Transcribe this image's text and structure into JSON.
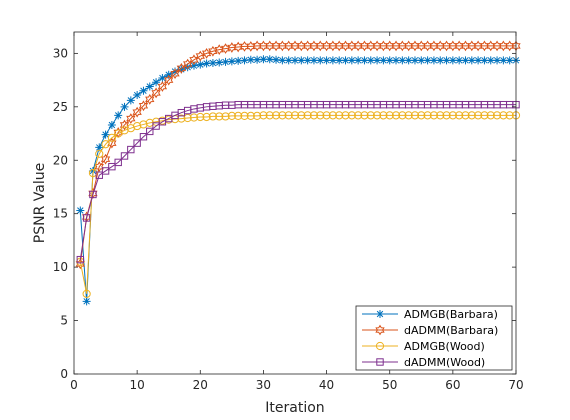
{
  "chart_data": {
    "type": "line",
    "xlabel": "Iteration",
    "ylabel": "PSNR Value",
    "xlim": [
      0,
      70
    ],
    "ylim": [
      0,
      32
    ],
    "xticks": [
      0,
      10,
      20,
      30,
      40,
      50,
      60,
      70
    ],
    "yticks": [
      0,
      5,
      10,
      15,
      20,
      25,
      30
    ],
    "grid": false,
    "legend_position": "bottom-right",
    "series": [
      {
        "name": "ADMGB(Barbara)",
        "color": "#0072BD",
        "marker": "asterisk",
        "values": [
          15.3,
          6.8,
          19.0,
          21.2,
          22.4,
          23.3,
          24.2,
          25.0,
          25.6,
          26.1,
          26.5,
          26.9,
          27.3,
          27.7,
          28.0,
          28.3,
          28.5,
          28.7,
          28.85,
          28.95,
          29.05,
          29.1,
          29.15,
          29.2,
          29.25,
          29.3,
          29.35,
          29.4,
          29.4,
          29.45,
          29.45,
          29.4,
          29.35,
          29.35,
          29.35,
          29.35,
          29.35,
          29.35,
          29.35,
          29.35,
          29.35,
          29.35,
          29.35,
          29.35,
          29.35,
          29.35,
          29.35,
          29.35,
          29.35,
          29.35,
          29.35,
          29.35,
          29.35,
          29.35,
          29.35,
          29.35,
          29.35,
          29.35,
          29.35,
          29.35,
          29.35,
          29.35,
          29.35,
          29.35,
          29.35,
          29.35,
          29.35,
          29.35,
          29.35,
          29.35
        ]
      },
      {
        "name": "dADMM(Barbara)",
        "color": "#D95319",
        "marker": "hexagram",
        "values": [
          10.3,
          14.7,
          16.9,
          19.4,
          20.1,
          21.6,
          22.6,
          23.3,
          23.9,
          24.5,
          25.1,
          25.7,
          26.3,
          26.9,
          27.5,
          28.1,
          28.6,
          29.0,
          29.4,
          29.75,
          30.0,
          30.2,
          30.35,
          30.45,
          30.55,
          30.6,
          30.65,
          30.65,
          30.7,
          30.7,
          30.7,
          30.7,
          30.7,
          30.7,
          30.7,
          30.7,
          30.7,
          30.7,
          30.7,
          30.7,
          30.7,
          30.7,
          30.7,
          30.7,
          30.7,
          30.7,
          30.7,
          30.7,
          30.7,
          30.7,
          30.7,
          30.7,
          30.7,
          30.7,
          30.7,
          30.7,
          30.7,
          30.7,
          30.7,
          30.7,
          30.7,
          30.7,
          30.7,
          30.7,
          30.7,
          30.7,
          30.7,
          30.7,
          30.7,
          30.7
        ]
      },
      {
        "name": "ADMGB(Wood)",
        "color": "#EDB120",
        "marker": "circle",
        "values": [
          10.5,
          7.5,
          18.8,
          20.6,
          21.5,
          22.1,
          22.5,
          22.8,
          23.0,
          23.2,
          23.35,
          23.5,
          23.6,
          23.7,
          23.8,
          23.85,
          23.9,
          23.95,
          24.0,
          24.05,
          24.05,
          24.1,
          24.1,
          24.1,
          24.15,
          24.15,
          24.15,
          24.15,
          24.15,
          24.2,
          24.2,
          24.2,
          24.2,
          24.2,
          24.2,
          24.2,
          24.2,
          24.2,
          24.2,
          24.2,
          24.2,
          24.2,
          24.2,
          24.2,
          24.2,
          24.2,
          24.2,
          24.2,
          24.2,
          24.2,
          24.2,
          24.2,
          24.2,
          24.2,
          24.2,
          24.2,
          24.2,
          24.2,
          24.2,
          24.2,
          24.2,
          24.2,
          24.2,
          24.2,
          24.2,
          24.2,
          24.2,
          24.2,
          24.2,
          24.2
        ]
      },
      {
        "name": "dADMM(Wood)",
        "color": "#7E2F8E",
        "marker": "square",
        "values": [
          10.7,
          14.6,
          16.8,
          18.6,
          19.0,
          19.4,
          19.8,
          20.4,
          21.0,
          21.6,
          22.2,
          22.7,
          23.2,
          23.6,
          23.9,
          24.2,
          24.45,
          24.65,
          24.8,
          24.9,
          25.0,
          25.05,
          25.1,
          25.15,
          25.15,
          25.2,
          25.2,
          25.2,
          25.2,
          25.2,
          25.2,
          25.2,
          25.2,
          25.2,
          25.2,
          25.2,
          25.2,
          25.2,
          25.2,
          25.2,
          25.2,
          25.2,
          25.2,
          25.2,
          25.2,
          25.2,
          25.2,
          25.2,
          25.2,
          25.2,
          25.2,
          25.2,
          25.2,
          25.2,
          25.2,
          25.2,
          25.2,
          25.2,
          25.2,
          25.2,
          25.2,
          25.2,
          25.2,
          25.2,
          25.2,
          25.2,
          25.2,
          25.2,
          25.2,
          25.2
        ]
      }
    ]
  }
}
